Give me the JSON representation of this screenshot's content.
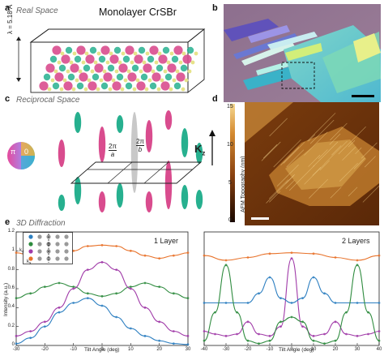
{
  "panel_a": {
    "letter": "a",
    "subtitle": "Real Space",
    "title": "Monolayer CrSBr",
    "dimension_label": "λ = 5.18 Å"
  },
  "panel_b": {
    "letter": "b"
  },
  "panel_c": {
    "letter": "c",
    "subtitle": "Reciprocal Space",
    "phase_wheel_left": "π",
    "phase_wheel_right": "0",
    "label_a_num": "2π",
    "label_a_den": "a",
    "label_b_num": "2π",
    "label_b_den": "b",
    "kz_label": "K",
    "kz_sub": "z"
  },
  "panel_d": {
    "letter": "d",
    "colorbar_label": "AFM Topography (nm)",
    "colorbar_ticks": [
      "15",
      "10",
      "5",
      "0"
    ]
  },
  "panel_e": {
    "letter": "e",
    "subtitle": "3D Diffraction",
    "left_label": "1 Layer",
    "right_label": "2 Layers",
    "ylabel": "Intensity (a.u.)",
    "xlabel": "Tilt Angle (deg)",
    "inset_kx": "k",
    "inset_kx_sub": "x",
    "inset_ky": "k",
    "inset_ky_sub": "y",
    "left_y_ticks": [
      "1.2",
      "1",
      "0.8",
      "0.6",
      "0.4",
      "0.2",
      "0"
    ],
    "left_x_ticks": [
      "-30",
      "-20",
      "-10",
      "0",
      "10",
      "20",
      "30"
    ],
    "right_x_ticks": [
      "-40",
      "-30",
      "-20",
      "-10",
      "0",
      "10",
      "20",
      "30",
      "40"
    ]
  },
  "colors": {
    "orange": "#e8722a",
    "green": "#2e8b3e",
    "purple": "#a03aa8",
    "blue": "#2d7fc1",
    "pink": "#d94c8e",
    "teal": "#27b08f",
    "afm_dark": "#5a2a0c",
    "afm_light": "#f0c070"
  },
  "chart_data": [
    {
      "type": "line",
      "title": "1 Layer",
      "xlabel": "Tilt Angle (deg)",
      "ylabel": "Intensity (a.u.)",
      "xlim": [
        -30,
        30
      ],
      "ylim": [
        0,
        1.2
      ],
      "series": [
        {
          "color": "#e8722a",
          "x": [
            -30,
            -25,
            -20,
            -15,
            -10,
            -5,
            0,
            5,
            10,
            15,
            20,
            25,
            30
          ],
          "y": [
            0.98,
            0.95,
            0.92,
            0.95,
            1.0,
            1.05,
            1.06,
            1.05,
            1.0,
            0.95,
            0.92,
            0.95,
            0.98
          ]
        },
        {
          "color": "#2e8b3e",
          "x": [
            -30,
            -25,
            -20,
            -15,
            -10,
            -5,
            0,
            5,
            10,
            15,
            20,
            25,
            30
          ],
          "y": [
            0.5,
            0.55,
            0.62,
            0.66,
            0.62,
            0.55,
            0.52,
            0.55,
            0.62,
            0.66,
            0.62,
            0.55,
            0.5
          ]
        },
        {
          "color": "#a03aa8",
          "x": [
            -30,
            -25,
            -20,
            -15,
            -10,
            -5,
            0,
            5,
            10,
            15,
            20,
            25,
            30
          ],
          "y": [
            0.1,
            0.15,
            0.25,
            0.4,
            0.6,
            0.8,
            0.88,
            0.8,
            0.6,
            0.4,
            0.25,
            0.15,
            0.1
          ]
        },
        {
          "color": "#2d7fc1",
          "x": [
            -30,
            -25,
            -20,
            -15,
            -10,
            -5,
            0,
            5,
            10,
            15,
            20,
            25,
            30
          ],
          "y": [
            0.02,
            0.08,
            0.2,
            0.35,
            0.45,
            0.5,
            0.42,
            0.3,
            0.18,
            0.1,
            0.05,
            0.02,
            0.01
          ]
        }
      ]
    },
    {
      "type": "line",
      "title": "2 Layers",
      "xlabel": "Tilt Angle (deg)",
      "xlim": [
        -40,
        40
      ],
      "series": [
        {
          "color": "#e8722a",
          "x": [
            -40,
            -30,
            -20,
            -10,
            0,
            10,
            20,
            30,
            40
          ],
          "y": [
            0.95,
            0.9,
            0.93,
            0.97,
            0.98,
            0.97,
            0.93,
            0.9,
            0.95
          ]
        },
        {
          "color": "#a03aa8",
          "x": [
            -40,
            -35,
            -30,
            -25,
            -20,
            -15,
            -10,
            -5,
            0,
            5,
            10,
            15,
            20,
            25,
            30,
            35,
            40
          ],
          "y": [
            0.15,
            0.12,
            0.1,
            0.12,
            0.25,
            0.12,
            0.1,
            0.2,
            0.92,
            0.2,
            0.1,
            0.12,
            0.25,
            0.12,
            0.1,
            0.12,
            0.15
          ]
        },
        {
          "color": "#2d7fc1",
          "x": [
            -40,
            -30,
            -20,
            -15,
            -10,
            -5,
            0,
            5,
            10,
            15,
            20,
            30,
            40
          ],
          "y": [
            0.45,
            0.45,
            0.45,
            0.55,
            0.72,
            0.5,
            0.45,
            0.5,
            0.72,
            0.55,
            0.45,
            0.45,
            0.45
          ]
        },
        {
          "color": "#2e8b3e",
          "x": [
            -40,
            -35,
            -30,
            -25,
            -20,
            -15,
            -10,
            -5,
            0,
            5,
            10,
            15,
            20,
            25,
            30,
            35,
            40
          ],
          "y": [
            0.05,
            0.35,
            0.85,
            0.35,
            0.05,
            0.02,
            0.05,
            0.25,
            0.3,
            0.25,
            0.05,
            0.02,
            0.05,
            0.35,
            0.85,
            0.35,
            0.05
          ]
        }
      ]
    }
  ]
}
